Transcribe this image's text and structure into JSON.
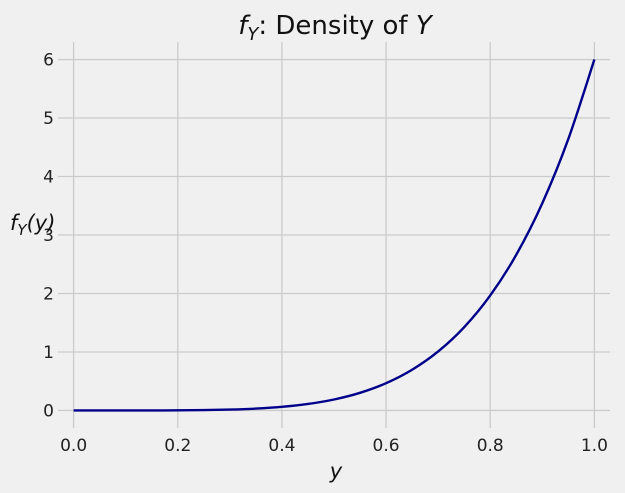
{
  "chart_data": {
    "type": "line",
    "title": {
      "symbol": "f",
      "subscript": "Y",
      "text": ": Density of ",
      "variable": "Y"
    },
    "xlabel": "y",
    "ylabel": {
      "symbol": "f",
      "subscript": "Y",
      "arg": "(y)"
    },
    "xlim": [
      -0.03,
      1.03
    ],
    "ylim": [
      -0.3,
      6.3
    ],
    "xticks": [
      0.0,
      0.2,
      0.4,
      0.6,
      0.8,
      1.0
    ],
    "xtick_labels": [
      "0.0",
      "0.2",
      "0.4",
      "0.6",
      "0.8",
      "1.0"
    ],
    "yticks": [
      0,
      1,
      2,
      3,
      4,
      5,
      6
    ],
    "ytick_labels": [
      "0",
      "1",
      "2",
      "3",
      "4",
      "5",
      "6"
    ],
    "grid": true,
    "series": [
      {
        "color": "#00008b",
        "x": [
          0.0,
          0.05,
          0.1,
          0.15,
          0.2,
          0.25,
          0.3,
          0.35,
          0.4,
          0.45,
          0.5,
          0.55,
          0.6,
          0.65,
          0.7,
          0.75,
          0.8,
          0.85,
          0.9,
          0.95,
          1.0
        ],
        "y": [
          0.0,
          0.0,
          0.0001,
          0.0005,
          0.0019,
          0.0059,
          0.0146,
          0.0315,
          0.0614,
          0.1107,
          0.1875,
          0.3019,
          0.4666,
          0.6962,
          1.0084,
          1.4238,
          1.9661,
          2.6623,
          3.5429,
          4.6423,
          6.0
        ]
      }
    ]
  }
}
